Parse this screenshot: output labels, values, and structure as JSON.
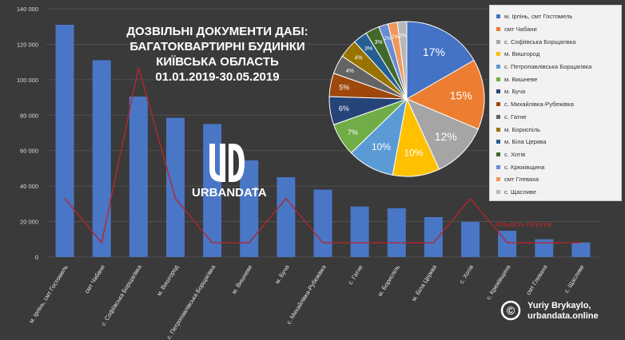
{
  "title_lines": [
    "ДОЗВІЛЬНІ ДОКУМЕНТИ ДАБІ:",
    "БАГАТОКВАРТИРНІ БУДИНКИ",
    "КИЇВСЬКА ОБЛАСТЬ",
    "01.01.2019-30.05.2019"
  ],
  "logo": {
    "text": "URBANDATA",
    "registered": "®"
  },
  "credit": {
    "symbol": "©",
    "line1": "Yuriy Brykaylo,",
    "line2": "urbandata.online"
  },
  "line_label": "Кількість об'єктів",
  "colors": {
    "background": "#3a3a3a",
    "bar": "#4a76c6",
    "line": "#b3262e",
    "title": "#ffffff",
    "credit_symbol": "#ffffff"
  },
  "chart_data": [
    {
      "type": "bar",
      "categories": [
        "м. Ірпінь, смт Гостомель",
        "смт Чабани",
        "с. Софіївська Борщагівка",
        "м. Вишгород",
        "с. Петропавлівська Борщагівка",
        "м. Вишневе",
        "м. Буча",
        "с. Михайлівка-Рубежівка",
        "с. Гатне",
        "м. Бориспіль",
        "м. Біла Церква",
        "с. Хотів",
        "с. Крюківщина",
        "смт Глеваха",
        "с. Щасливе"
      ],
      "series": [
        {
          "values": [
            131000,
            111000,
            90500,
            78500,
            75000,
            54500,
            45000,
            38000,
            28500,
            27500,
            22500,
            19800,
            14800,
            10000,
            8200
          ]
        },
        {
          "name": "Кількість об'єктів",
          "type": "line",
          "values": [
            33000,
            8000,
            107000,
            33000,
            8000,
            8000,
            33000,
            8000,
            8000,
            8000,
            8000,
            33000,
            8000,
            8000,
            8000
          ]
        }
      ],
      "y_ticks": [
        "0",
        "20 000",
        "40 000",
        "60 000",
        "80 000",
        "100 000",
        "120 000",
        "140 000"
      ],
      "ylim": [
        0,
        140000
      ],
      "grid": true
    },
    {
      "type": "pie",
      "labels": [
        "м. Ірпінь, смт Гостомель",
        "смт Чабани",
        "с. Софіївська Борщагівка",
        "м. Вишгород",
        "с. Петропавлівська Борщагівка",
        "м. Вишневе",
        "м. Буча",
        "с. Михайлівка-Рубежівка",
        "с. Гатне",
        "м. Бориспіль",
        "м. Біла Церква",
        "с. Хотів",
        "с. Крюківщина",
        "смт Глеваха",
        "с. Щасливе"
      ],
      "values": [
        17,
        15,
        12,
        10,
        10,
        7,
        6,
        5,
        4,
        4,
        3,
        3,
        2,
        2,
        2
      ],
      "data_labels": [
        "17%",
        "15%",
        "12%",
        "10%",
        "10%",
        "7%",
        "6%",
        "5%",
        "4%",
        "4%",
        "3%",
        "3%",
        "2%",
        "2%",
        "2%"
      ],
      "colors": [
        "#4472c4",
        "#ed7d31",
        "#a5a5a5",
        "#ffc000",
        "#5b9bd5",
        "#70ad47",
        "#264478",
        "#9e480e",
        "#636363",
        "#997300",
        "#255e91",
        "#43682b",
        "#698ed0",
        "#f1975a",
        "#b7b7b7"
      ],
      "legend_position": "right"
    }
  ]
}
